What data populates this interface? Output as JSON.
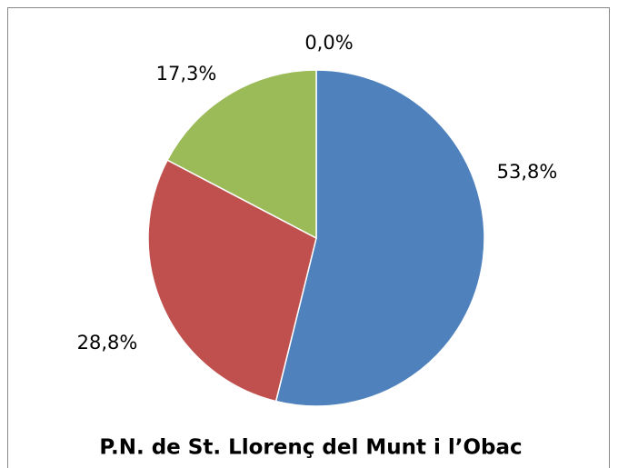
{
  "chart_data": {
    "type": "pie",
    "title": "P.N. de St. Llorenç del Munt i l’Obac",
    "values": [
      53.8,
      28.8,
      17.3,
      0.0
    ],
    "value_labels": [
      "53,8%",
      "28,8%",
      "17,3%",
      "0,0%"
    ],
    "colors": [
      "#4f81bd",
      "#c0504d",
      "#9bbb59",
      "#8064a2"
    ]
  }
}
